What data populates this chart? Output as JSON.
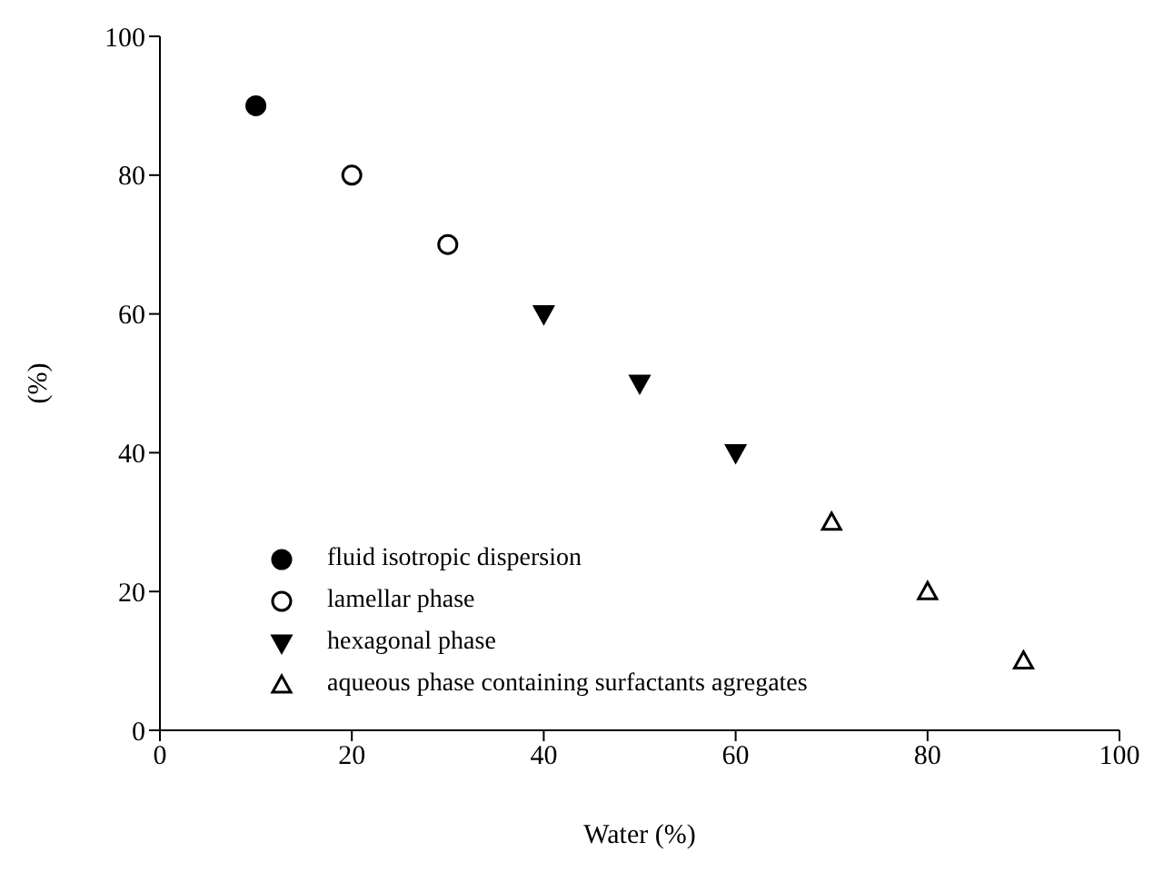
{
  "chart_data": {
    "type": "scatter",
    "xlabel": "Water (%)",
    "ylabel": "(%)",
    "xlim": [
      0,
      100
    ],
    "xticks": [
      0,
      20,
      40,
      60,
      80,
      100
    ],
    "ylim": [
      0,
      100
    ],
    "yticks": [
      0,
      20,
      40,
      60,
      80,
      100
    ],
    "grid": false,
    "legend": "bottom left",
    "series": [
      {
        "name": "fluid isotropic dispersion",
        "color": "#000000",
        "marker": "circle",
        "x": [
          10
        ],
        "values": [
          90
        ]
      },
      {
        "name": "lamellar phase",
        "color": "#ffffff",
        "marker": "circle",
        "x": [
          20,
          30
        ],
        "values": [
          80,
          70
        ]
      },
      {
        "name": "hexagonal phase",
        "color": "#000000",
        "marker": "triangle-down",
        "x": [
          40,
          50,
          60
        ],
        "values": [
          60,
          50,
          40
        ]
      },
      {
        "name": "aqueous phase containing surfactants agregates",
        "color": "#ffffff",
        "marker": "triangle",
        "x": [
          70,
          80,
          90
        ],
        "values": [
          30,
          20,
          10
        ]
      }
    ]
  }
}
